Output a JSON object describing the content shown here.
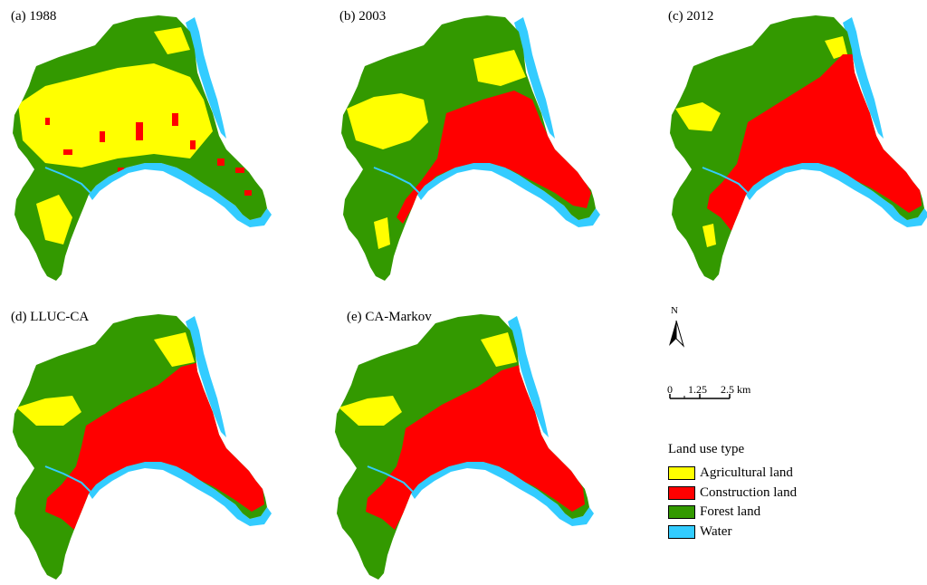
{
  "panels": [
    {
      "label": "(a) 1988",
      "year_state": "1988"
    },
    {
      "label": "(b) 2003",
      "year_state": "2003"
    },
    {
      "label": "(c) 2012",
      "year_state": "2012"
    },
    {
      "label": "(d) LLUC-CA",
      "year_state": "simulation"
    },
    {
      "label": "(e) CA-Markov",
      "year_state": "simulation"
    }
  ],
  "north_arrow": {
    "letter": "N"
  },
  "scale_bar": {
    "labels": [
      "0",
      "1.25",
      "2.5 km"
    ]
  },
  "legend": {
    "title": "Land use type",
    "items": [
      {
        "label": "Agricultural land",
        "color": "#ffff00"
      },
      {
        "label": "Construction land",
        "color": "#ff0000"
      },
      {
        "label": "Forest land",
        "color": "#339900"
      },
      {
        "label": "Water",
        "color": "#33ccff"
      }
    ]
  },
  "colors": {
    "agricultural": "#ffff00",
    "construction": "#ff0000",
    "forest": "#339900",
    "water": "#33ccff"
  }
}
